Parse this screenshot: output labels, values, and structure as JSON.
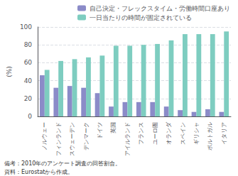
{
  "chart_data": {
    "type": "bar",
    "categories": [
      "ノルウェー",
      "フィンランド",
      "スウェーデン",
      "デンマーク",
      "ドイツ",
      "英国",
      "アイルランド",
      "フランス",
      "ユーロ圏",
      "オランダ",
      "スペイン",
      "ギリシャ",
      "ポルトガル",
      "イタリア"
    ],
    "series": [
      {
        "name": "自己決定・フレックスタイム・労働時間口座あり",
        "color": "#8b8bc8",
        "values": [
          46,
          32,
          34,
          32,
          26,
          11,
          16,
          16,
          16,
          11,
          7,
          5,
          8,
          5
        ]
      },
      {
        "name": "一日当たりの時間が固定されている",
        "color": "#7ecdc0",
        "values": [
          52,
          62,
          64,
          66,
          68,
          79,
          79,
          80,
          81,
          85,
          92,
          92,
          92,
          95
        ]
      }
    ],
    "ylabel": "(%)",
    "ylim": [
      0,
      100
    ],
    "yticks": [
      0,
      20,
      40,
      60,
      80,
      100
    ],
    "grid": true,
    "legend": "upper right",
    "annotations": [
      "備考：2010年のアンケート調査の回答割合。",
      "資料：Eurostatから作成。"
    ]
  }
}
